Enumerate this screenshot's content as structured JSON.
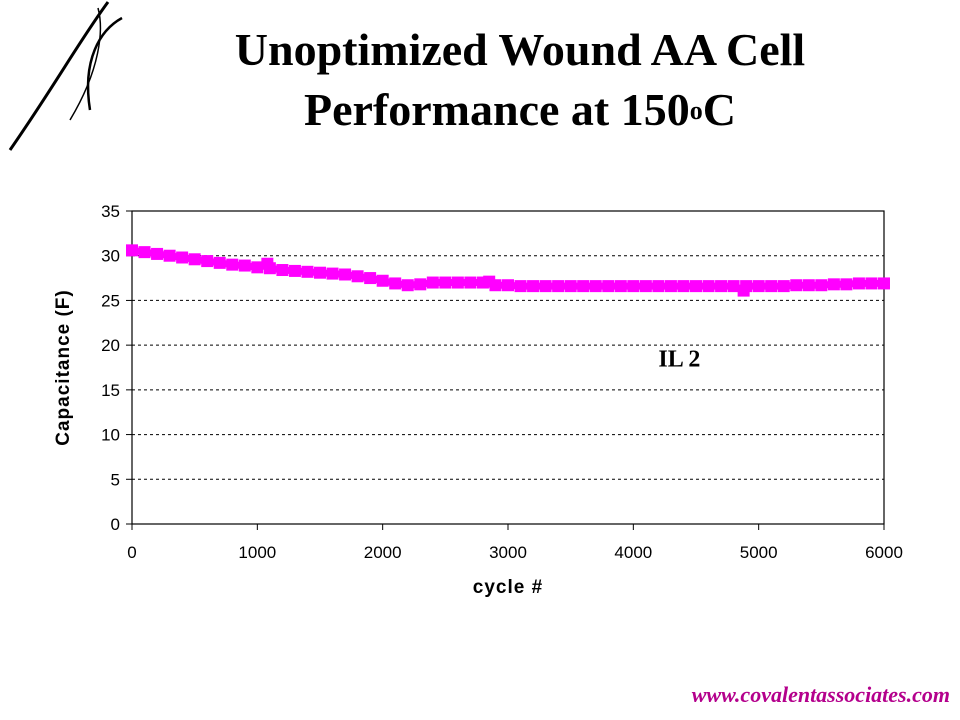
{
  "slide": {
    "title_line1": "Unoptimized Wound AA Cell",
    "title_line2_main": "Performance at 150",
    "title_line2_sup": "o",
    "title_line2_end": "C",
    "footer_url": "www.covalentassociates.com",
    "accent_color": "#ff00ff",
    "footer_color": "#b4008c",
    "logo_icon": "swoosh-logo-icon"
  },
  "chart_data": {
    "type": "line",
    "title": "",
    "xlabel": "cycle #",
    "ylabel": "Capacitance (F)",
    "xlim": [
      0,
      6000
    ],
    "ylim": [
      0,
      35
    ],
    "xticks": [
      0,
      1000,
      2000,
      3000,
      4000,
      5000,
      6000
    ],
    "yticks": [
      0,
      5,
      10,
      15,
      20,
      25,
      30,
      35
    ],
    "grid": "horizontal dashed",
    "annotation": "IL 2",
    "series": [
      {
        "color": "#ff00ff",
        "x": [
          0,
          100,
          200,
          300,
          400,
          500,
          600,
          700,
          800,
          900,
          1000,
          1080,
          1100,
          1200,
          1300,
          1400,
          1500,
          1600,
          1700,
          1800,
          1900,
          2000,
          2100,
          2200,
          2300,
          2400,
          2500,
          2600,
          2700,
          2800,
          2850,
          2900,
          3000,
          3100,
          3200,
          3300,
          3400,
          3500,
          3600,
          3700,
          3800,
          3900,
          4000,
          4100,
          4200,
          4300,
          4400,
          4500,
          4600,
          4700,
          4800,
          4880,
          4900,
          5000,
          5100,
          5200,
          5300,
          5400,
          5500,
          5600,
          5700,
          5800,
          5900,
          6000
        ],
        "y": [
          30.6,
          30.4,
          30.2,
          30.0,
          29.8,
          29.6,
          29.4,
          29.2,
          29.0,
          28.9,
          28.7,
          29.1,
          28.6,
          28.4,
          28.3,
          28.2,
          28.1,
          28.0,
          27.9,
          27.7,
          27.5,
          27.2,
          26.9,
          26.7,
          26.8,
          27.0,
          27.0,
          27.0,
          27.0,
          27.0,
          27.1,
          26.7,
          26.7,
          26.6,
          26.6,
          26.6,
          26.6,
          26.6,
          26.6,
          26.6,
          26.6,
          26.6,
          26.6,
          26.6,
          26.6,
          26.6,
          26.6,
          26.6,
          26.6,
          26.6,
          26.6,
          26.1,
          26.6,
          26.6,
          26.6,
          26.6,
          26.7,
          26.7,
          26.7,
          26.8,
          26.8,
          26.9,
          26.9,
          26.9
        ]
      }
    ]
  }
}
